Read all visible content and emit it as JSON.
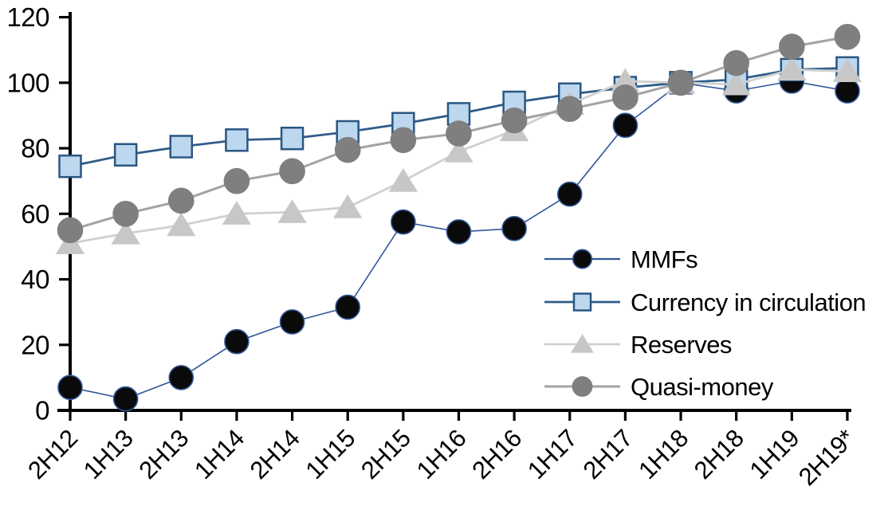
{
  "chart_data": {
    "type": "line",
    "title": "",
    "xlabel": "",
    "ylabel": "",
    "categories": [
      "2H12",
      "1H13",
      "2H13",
      "1H14",
      "2H14",
      "1H15",
      "2H15",
      "1H16",
      "2H16",
      "1H17",
      "2H17",
      "1H18",
      "2H18",
      "1H19",
      "2H19*"
    ],
    "series": [
      {
        "name": "MMFs",
        "marker": "circle",
        "marker_fill": "#0a0a0a",
        "marker_stroke": "#2f5597",
        "line_color": "#2f5597",
        "line_width": 1.6,
        "marker_size": 15,
        "values": [
          7,
          3.5,
          10,
          21,
          27,
          31.5,
          57.5,
          54.5,
          55.5,
          66,
          87,
          100,
          97.5,
          100.5,
          97.5
        ]
      },
      {
        "name": "Currency in circulation",
        "marker": "square",
        "marker_fill": "#bdd7ee",
        "marker_stroke": "#2a5783",
        "line_color": "#2e5c8a",
        "line_width": 2.8,
        "marker_size": 13.5,
        "values": [
          74.5,
          78,
          80.5,
          82.5,
          83,
          85,
          87.5,
          90.5,
          94,
          96.5,
          98.5,
          100,
          101,
          104,
          104.5
        ]
      },
      {
        "name": "Reserves",
        "marker": "triangle",
        "marker_fill": "#c7c7c7",
        "marker_stroke": "#c7c7c7",
        "line_color": "#d0d0d0",
        "line_width": 2.8,
        "marker_size": 16,
        "values": [
          51,
          54,
          56.5,
          60,
          60.5,
          62,
          70,
          79,
          85.5,
          93.5,
          100.5,
          100,
          99.5,
          104,
          103.5
        ]
      },
      {
        "name": "Quasi-money",
        "marker": "circle",
        "marker_fill": "#7f7f7f",
        "marker_stroke": "#7f7f7f",
        "line_color": "#a3a3a3",
        "line_width": 3,
        "marker_size": 15.5,
        "values": [
          55,
          60,
          64,
          70,
          73,
          79.5,
          82.5,
          84.5,
          88.5,
          92,
          95.5,
          100,
          106,
          111,
          114
        ]
      }
    ],
    "ylim": [
      0,
      120
    ],
    "yticks": [
      0,
      20,
      40,
      60,
      80,
      100,
      120
    ],
    "grid": false,
    "legend_position": "inside-right",
    "axis_color": "#000000"
  }
}
